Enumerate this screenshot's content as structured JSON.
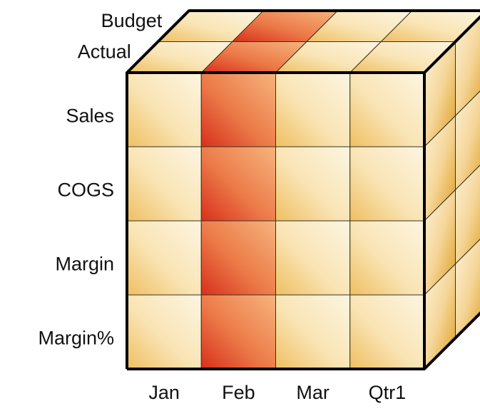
{
  "depth_labels": [
    "Budget",
    "Actual"
  ],
  "rows": [
    "Sales",
    "COGS",
    "Margin",
    "Margin%"
  ],
  "columns": [
    "Jan",
    "Feb",
    "Mar",
    "Qtr1"
  ]
}
